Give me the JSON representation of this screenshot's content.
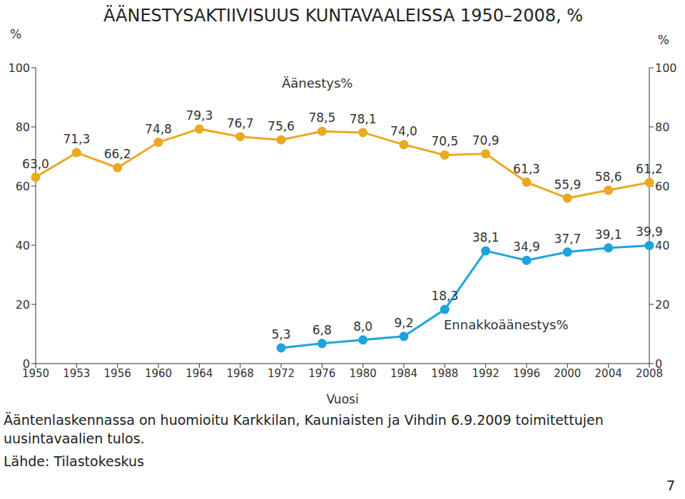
{
  "chart_data": {
    "type": "line",
    "title": "ÄÄNESTYSAKTIIVISUUS KUNTAVAALEISSA 1950–2008, %",
    "x_label": "Vuosi",
    "y_label": "%",
    "y2_label": "%",
    "categories": [
      "1950",
      "1953",
      "1956",
      "1960",
      "1964",
      "1968",
      "1972",
      "1976",
      "1980",
      "1984",
      "1988",
      "1992",
      "1996",
      "2000",
      "2004",
      "2008"
    ],
    "series": [
      {
        "name": "Äänestys%",
        "color": "#eaa921",
        "marker": "circle",
        "values": [
          63.0,
          71.3,
          66.2,
          74.8,
          79.3,
          76.7,
          75.6,
          78.5,
          78.1,
          74.0,
          70.5,
          70.9,
          61.3,
          55.9,
          58.6,
          61.2
        ],
        "value_labels": [
          "63,0",
          "71,3",
          "66,2",
          "74,8",
          "79,3",
          "76,7",
          "75,6",
          "78,5",
          "78,1",
          "74,0",
          "70,5",
          "70,9",
          "61,3",
          "55,9",
          "58,6",
          "61,2"
        ]
      },
      {
        "name": "Ennakkoäänestys%",
        "color": "#1fa3dc",
        "marker": "circle",
        "values": [
          null,
          null,
          null,
          null,
          null,
          null,
          5.3,
          6.8,
          8.0,
          9.2,
          18.3,
          38.1,
          34.9,
          37.7,
          39.1,
          39.9
        ],
        "value_labels": [
          null,
          null,
          null,
          null,
          null,
          null,
          "5,3",
          "6,8",
          "8,0",
          "9,2",
          "18,3",
          "38,1",
          "34,9",
          "37,7",
          "39,1",
          "39,9"
        ]
      }
    ],
    "ylim": [
      0,
      100
    ],
    "yticks": [
      0,
      20,
      40,
      60,
      80,
      100
    ],
    "y2lim": [
      0,
      100
    ],
    "y2ticks": [
      0,
      20,
      40,
      60,
      80,
      100
    ],
    "grid": false,
    "data_labels": true,
    "footnote": "Ääntenlaskennassa on huomioitu Karkkilan, Kauniaisten ja Vihdin 6.9.2009 toimitettujen uusintavaalien tulos.",
    "source": "Lähde: Tilastokeskus",
    "page_number": "7"
  }
}
